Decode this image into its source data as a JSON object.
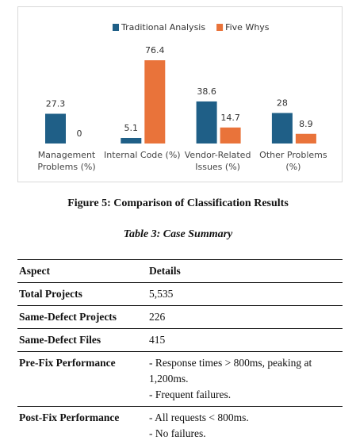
{
  "chart_data": {
    "type": "bar",
    "categories": [
      "Management Problems (%)",
      "Internal Code (%)",
      "Vendor-Related Issues (%)",
      "Other Problems (%)"
    ],
    "series": [
      {
        "name": "Traditional Analysis",
        "color": "#1f5f87",
        "values": [
          27.3,
          5.1,
          38.6,
          28
        ]
      },
      {
        "name": "Five Whys",
        "color": "#e9733a",
        "values": [
          0,
          76.4,
          14.7,
          8.9
        ]
      }
    ],
    "legend": "top"
  },
  "figure": {
    "caption": "Figure 5: Comparison of Classification Results"
  },
  "table": {
    "title": "Table 3: Case Summary",
    "columns": [
      "Aspect",
      "Details"
    ],
    "rows": [
      {
        "aspect": "Total Projects",
        "details": [
          "5,535"
        ]
      },
      {
        "aspect": "Same-Defect Projects",
        "details": [
          "226"
        ]
      },
      {
        "aspect": "Same-Defect Files",
        "details": [
          "415"
        ]
      },
      {
        "aspect": "Pre-Fix Performance",
        "details": [
          "- Response times > 800ms, peaking at 1,200ms.",
          "- Frequent failures."
        ]
      },
      {
        "aspect": "Post-Fix Performance",
        "details": [
          "- All requests < 800ms.",
          "- No failures."
        ]
      }
    ]
  }
}
